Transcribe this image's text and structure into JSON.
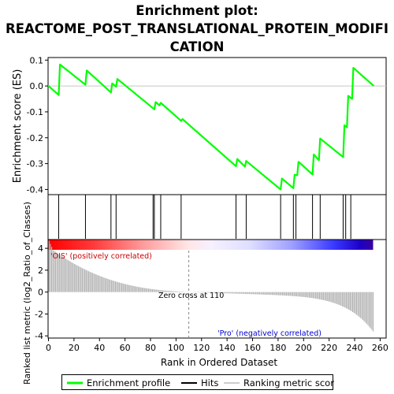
{
  "title_lines": [
    "Enrichment plot:",
    "REACTOME_POST_TRANSLATIONAL_PROTEIN_MODIFI",
    "CATION"
  ],
  "chart_data": {
    "type": "line",
    "title": "Enrichment plot: REACTOME_POST_TRANSLATIONAL_PROTEIN_MODIFICATION",
    "panels": {
      "enrichment": {
        "ylabel": "Enrichment score (ES)",
        "ylim": [
          -0.42,
          0.11
        ],
        "yticks": [
          0.1,
          0.0,
          -0.1,
          -0.2,
          -0.3,
          -0.4
        ],
        "ytick_labels": [
          "0.1",
          "0.0",
          "-0.1",
          "-0.2",
          "-0.3",
          "-0.4"
        ],
        "series": [
          {
            "name": "Enrichment profile",
            "color": "#00ff00",
            "x": [
              0,
              8,
              9,
              29,
              30,
              49,
              50,
              53,
              54,
              83,
              84,
              87,
              88,
              104,
              105,
              147,
              148,
              154,
              155,
              182,
              183,
              192,
              193,
              195,
              196,
              207,
              208,
              212,
              213,
              231,
              232,
              234,
              235,
              238,
              239,
              255
            ],
            "y": [
              0.0,
              -0.035,
              0.083,
              0.005,
              0.06,
              -0.025,
              0.01,
              -0.003,
              0.027,
              -0.09,
              -0.062,
              -0.075,
              -0.065,
              -0.135,
              -0.128,
              -0.31,
              -0.282,
              -0.312,
              -0.29,
              -0.4,
              -0.358,
              -0.395,
              -0.343,
              -0.345,
              -0.293,
              -0.342,
              -0.265,
              -0.287,
              -0.203,
              -0.275,
              -0.152,
              -0.16,
              -0.038,
              -0.05,
              0.07,
              0.0
            ]
          }
        ]
      },
      "hits": {
        "name": "Hits",
        "positions": [
          8,
          29,
          49,
          53,
          82,
          83,
          88,
          104,
          147,
          155,
          182,
          192,
          194,
          207,
          213,
          231,
          233,
          237
        ]
      },
      "metric": {
        "ylabel": "Ranked list metric (log2_Ratio_of_Classes)",
        "xlabel": "Rank in Ordered Dataset",
        "xlim": [
          0,
          265
        ],
        "xticks": [
          0,
          20,
          40,
          60,
          80,
          100,
          120,
          140,
          160,
          180,
          200,
          220,
          240,
          260
        ],
        "ylim": [
          -4.2,
          4.8
        ],
        "yticks": [
          4,
          2,
          0,
          -2,
          -4
        ],
        "series_name": "Ranking metric scores",
        "positive_label": "'OIS' (positively correlated)",
        "negative_label": "'Pro' (negatively correlated)",
        "zero_cross_label": "Zero cross at 110",
        "zero_cross": 110,
        "n_ranks": 255
      }
    },
    "legend": {
      "placement": "bottom",
      "entries": [
        "Enrichment profile",
        "Hits",
        "Ranking metric scores"
      ]
    },
    "colors": {
      "profile": "#00ff00",
      "hit": "#000000",
      "metric_bars": "#b4b4b4",
      "positive_label": "#cc0000",
      "negative_label": "#0000cc"
    }
  }
}
